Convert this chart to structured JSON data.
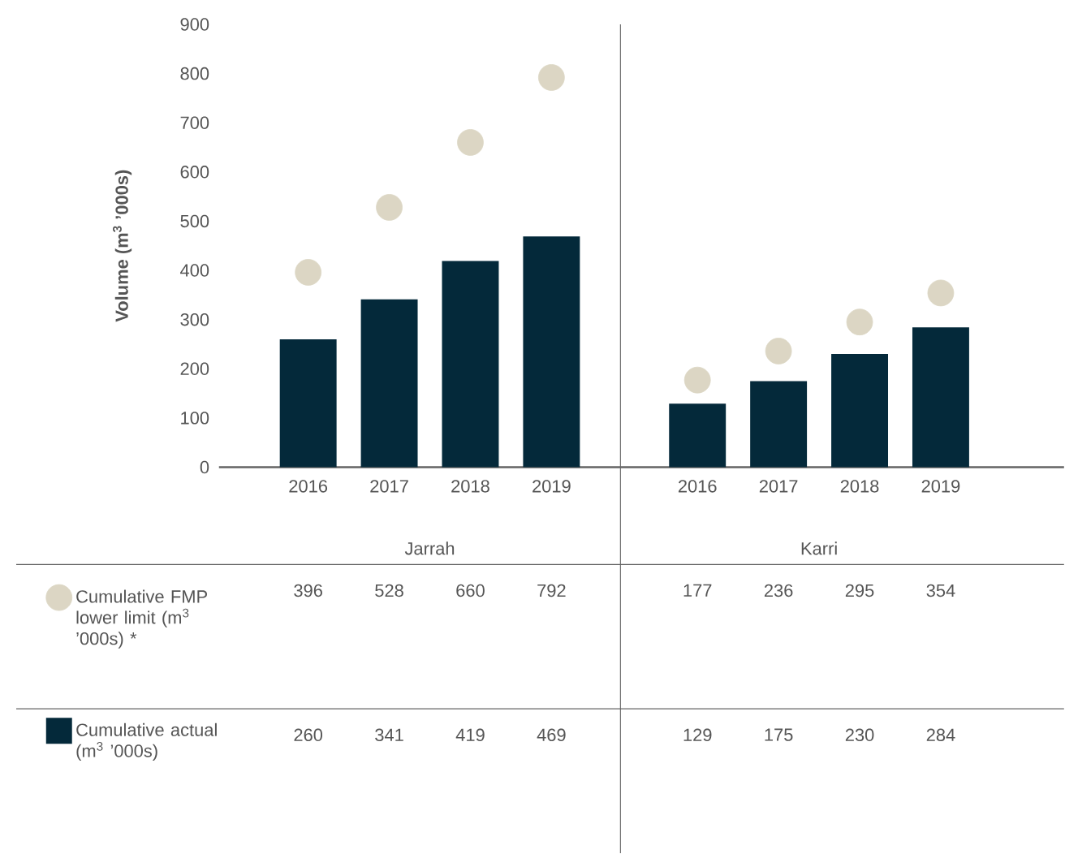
{
  "chart_data": {
    "type": "bar",
    "ylabel": "Volume (m$^{3}$ ’000s)",
    "categories": [
      "2016",
      "2017",
      "2018",
      "2019",
      "2016",
      "2017",
      "2018",
      "2019"
    ],
    "series": [
      {
        "name": "Cumulative FMP lower limit (m$^{3}$ ’000s) *",
        "type": "scatter",
        "color": "#dcd6c4",
        "values": [
          396,
          528,
          660,
          792,
          177,
          236,
          295,
          354
        ]
      },
      {
        "name": "Cumulative actual (m$^{3}$ ’000s)",
        "color": "#04293a",
        "values": [
          260,
          341,
          419,
          469,
          129,
          175,
          230,
          284
        ]
      }
    ],
    "annotations": [
      "Jarrah",
      "Karri"
    ],
    "ylim": [
      0,
      900
    ],
    "yticks": [
      0,
      100,
      200,
      300,
      400,
      500,
      600,
      700,
      800,
      900
    ],
    "data_labels": true,
    "legend": "bottom",
    "marker": "circle",
    "grid": false
  }
}
